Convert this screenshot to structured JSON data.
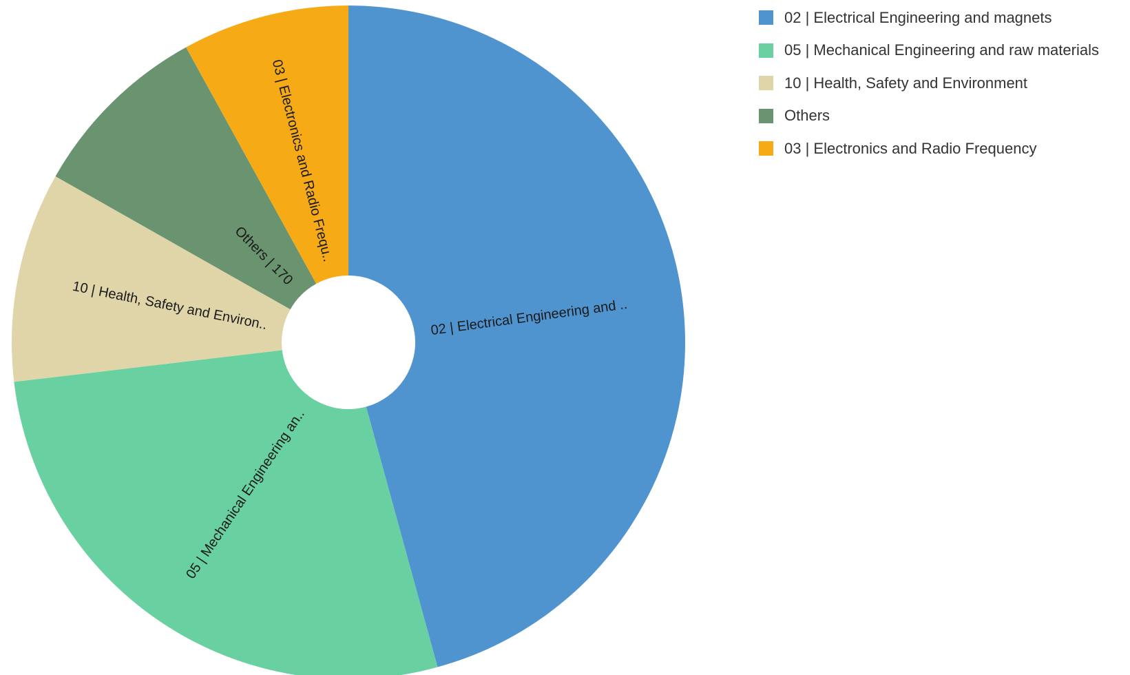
{
  "chart_data": {
    "type": "pie",
    "variant": "donut",
    "legend_position": "top-right",
    "series": [
      {
        "name": "02 | Electrical Engineering and magnets",
        "slice_label": "02 | Electrical Engineering and ..",
        "value": 885,
        "color": "#4f94cf"
      },
      {
        "name": "05 | Mechanical Engineering and raw materials",
        "slice_label": "05 | Mechanical Engineering an..",
        "value": 530,
        "color": "#69d1a1"
      },
      {
        "name": "10 | Health, Safety and Environment",
        "slice_label": "10 | Health, Safety and Environ..",
        "value": 195,
        "color": "#dfd5a8"
      },
      {
        "name": "Others",
        "slice_label": "Others | 170",
        "value": 170,
        "color": "#69946f"
      },
      {
        "name": "03 | Electronics and Radio Frequency",
        "slice_label": "03 | Electronics and Radio Frequ..",
        "value": 155,
        "color": "#f6ab16"
      }
    ]
  }
}
